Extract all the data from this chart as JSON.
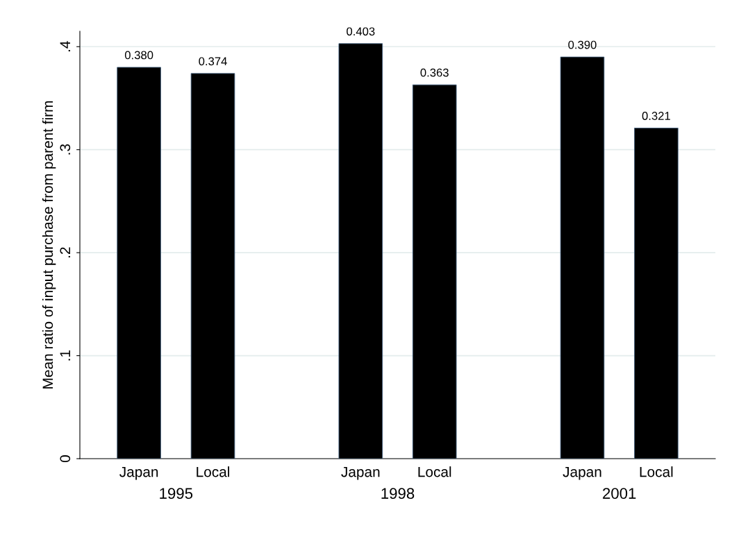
{
  "chart_data": {
    "type": "bar",
    "ylabel": "Mean ratio of input purchase from parent firm",
    "categories": [
      "Japan",
      "Local",
      null,
      "Japan",
      "Local",
      null,
      "Japan",
      "Local"
    ],
    "values": [
      0.38,
      0.374,
      null,
      0.403,
      0.363,
      null,
      0.39,
      0.321
    ],
    "value_labels": [
      "0.380",
      "0.374",
      null,
      "0.403",
      "0.363",
      null,
      "0.390",
      "0.321"
    ],
    "color": "#000000",
    "annotations": [
      "1995",
      "1998",
      "2001"
    ],
    "ylim": [
      0,
      0.415
    ],
    "yticks": [
      {
        "value": 0,
        "label": "0"
      },
      {
        "value": 0.1,
        "label": ".1"
      },
      {
        "value": 0.2,
        "label": ".2"
      },
      {
        "value": 0.3,
        "label": ".3"
      },
      {
        "value": 0.4,
        "label": ".4"
      }
    ],
    "grid": "y"
  }
}
